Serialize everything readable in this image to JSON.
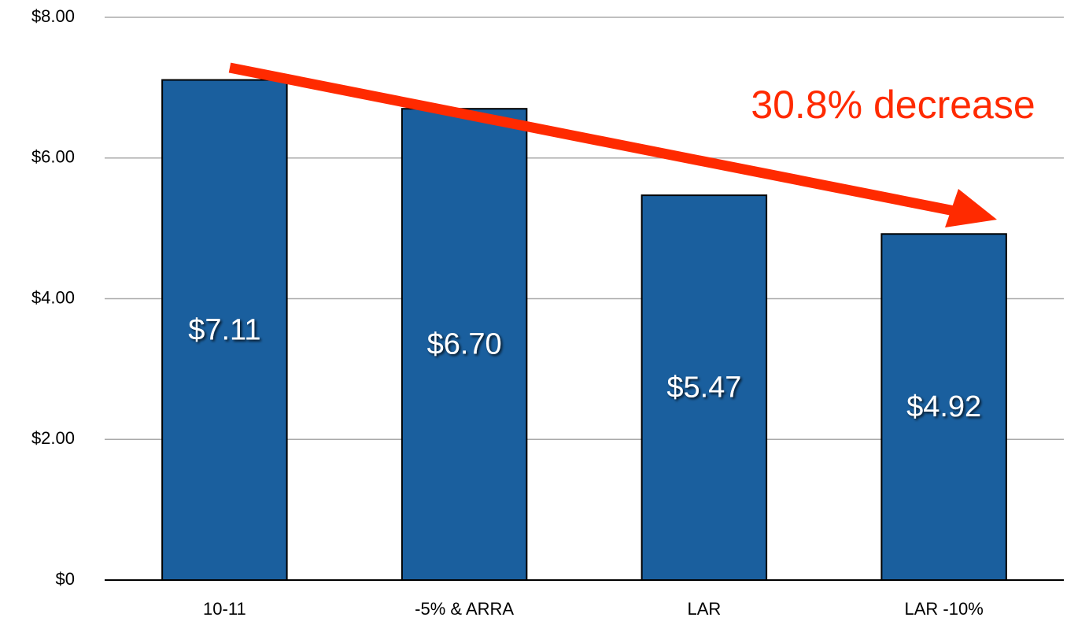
{
  "chart_data": {
    "type": "bar",
    "categories": [
      "10-11",
      "-5% & ARRA",
      "LAR",
      "LAR -10%"
    ],
    "values": [
      7.11,
      6.7,
      5.47,
      4.92
    ],
    "value_labels": [
      "$7.11",
      "$6.70",
      "$5.47",
      "$4.92"
    ],
    "color": "#1a5f9e",
    "ylim": [
      0,
      8
    ],
    "yticks": [
      {
        "value": 0,
        "label": "$0"
      },
      {
        "value": 2,
        "label": "$2.00"
      },
      {
        "value": 4,
        "label": "$4.00"
      },
      {
        "value": 6,
        "label": "$6.00"
      },
      {
        "value": 8,
        "label": "$8.00"
      }
    ],
    "grid": true,
    "annotation": "30.8% decrease"
  }
}
